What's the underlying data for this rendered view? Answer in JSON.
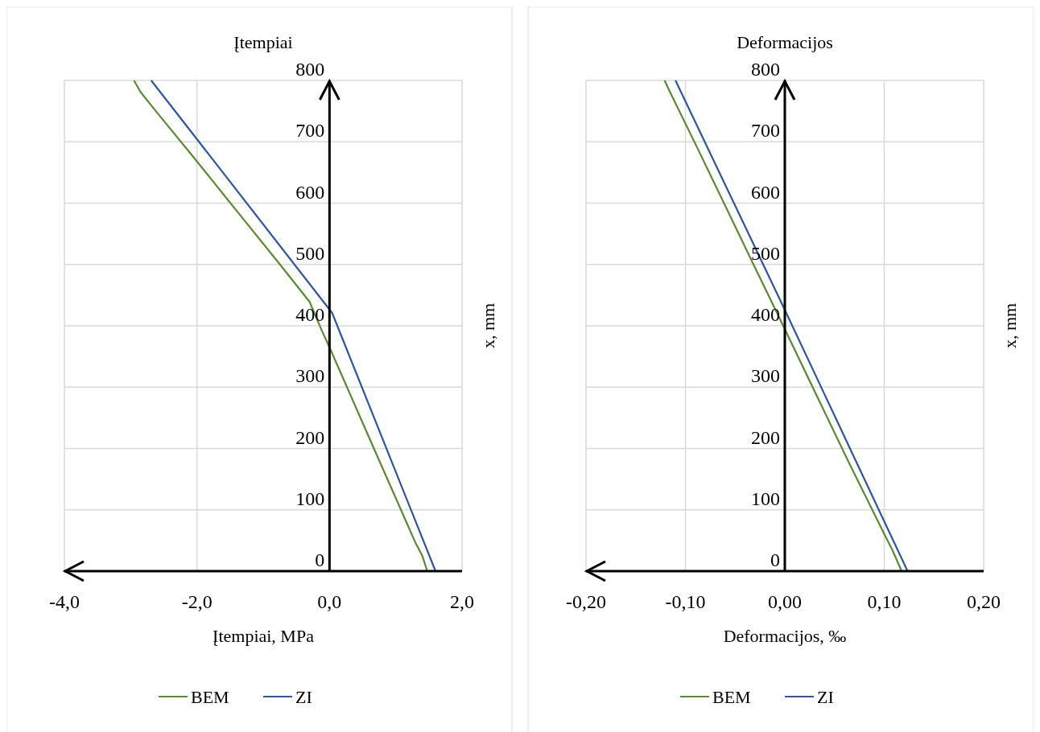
{
  "chart_data": [
    {
      "type": "line",
      "title": "Įtempiai",
      "xlabel": "Įtempiai, MPa",
      "ylabel": "x, mm",
      "xlim": [
        -4,
        2
      ],
      "ylim": [
        0,
        800
      ],
      "xticks": [
        {
          "value": -4,
          "label": "-4,0"
        },
        {
          "value": -2,
          "label": "-2,0"
        },
        {
          "value": 0,
          "label": "0,0"
        },
        {
          "value": 2,
          "label": "2,0"
        }
      ],
      "yticks": [
        0,
        100,
        200,
        300,
        400,
        500,
        600,
        700,
        800
      ],
      "grid": true,
      "legend": "bottom",
      "line_style": "solid",
      "marker": "none",
      "series": [
        {
          "name": "BEM",
          "color": "#5b8a32",
          "x": [
            1.475,
            1.4,
            1.29,
            0.67,
            0.0,
            -0.115,
            -0.3,
            -0.74,
            -1.42,
            -2.09,
            -2.62,
            -2.85,
            -2.95
          ],
          "values": [
            0,
            25,
            48,
            200,
            365,
            392,
            439,
            499,
            590,
            680,
            750,
            781,
            800
          ]
        },
        {
          "name": "ZI",
          "color": "#2e55a0",
          "x": [
            1.6,
            0.04,
            -2.69
          ],
          "values": [
            0,
            421,
            800
          ]
        }
      ]
    },
    {
      "type": "line",
      "title": "Deformacijos",
      "xlabel": "Deformacijos, ‰",
      "ylabel": "x, mm",
      "xlim": [
        -0.2,
        0.2
      ],
      "ylim": [
        0,
        800
      ],
      "xticks": [
        {
          "value": -0.2,
          "label": "-0,20"
        },
        {
          "value": -0.1,
          "label": "-0,10"
        },
        {
          "value": 0,
          "label": "0,00"
        },
        {
          "value": 0.1,
          "label": "0,10"
        },
        {
          "value": 0.2,
          "label": "0,20"
        }
      ],
      "yticks": [
        0,
        100,
        200,
        300,
        400,
        500,
        600,
        700,
        800
      ],
      "grid": true,
      "legend": "bottom",
      "line_style": "solid",
      "marker": "none",
      "series": [
        {
          "name": "BEM",
          "color": "#5b8a32",
          "x": [
            0.1175,
            0.108,
            0.102,
            0.065,
            -0.007,
            -0.033,
            -0.088,
            -0.114,
            -0.121
          ],
          "values": [
            0,
            35,
            54,
            175,
            418,
            505,
            690,
            776,
            800
          ]
        },
        {
          "name": "ZI",
          "color": "#2e55a0",
          "x": [
            0.1235,
            0.0,
            -0.11
          ],
          "values": [
            0,
            426,
            800
          ]
        }
      ]
    }
  ]
}
